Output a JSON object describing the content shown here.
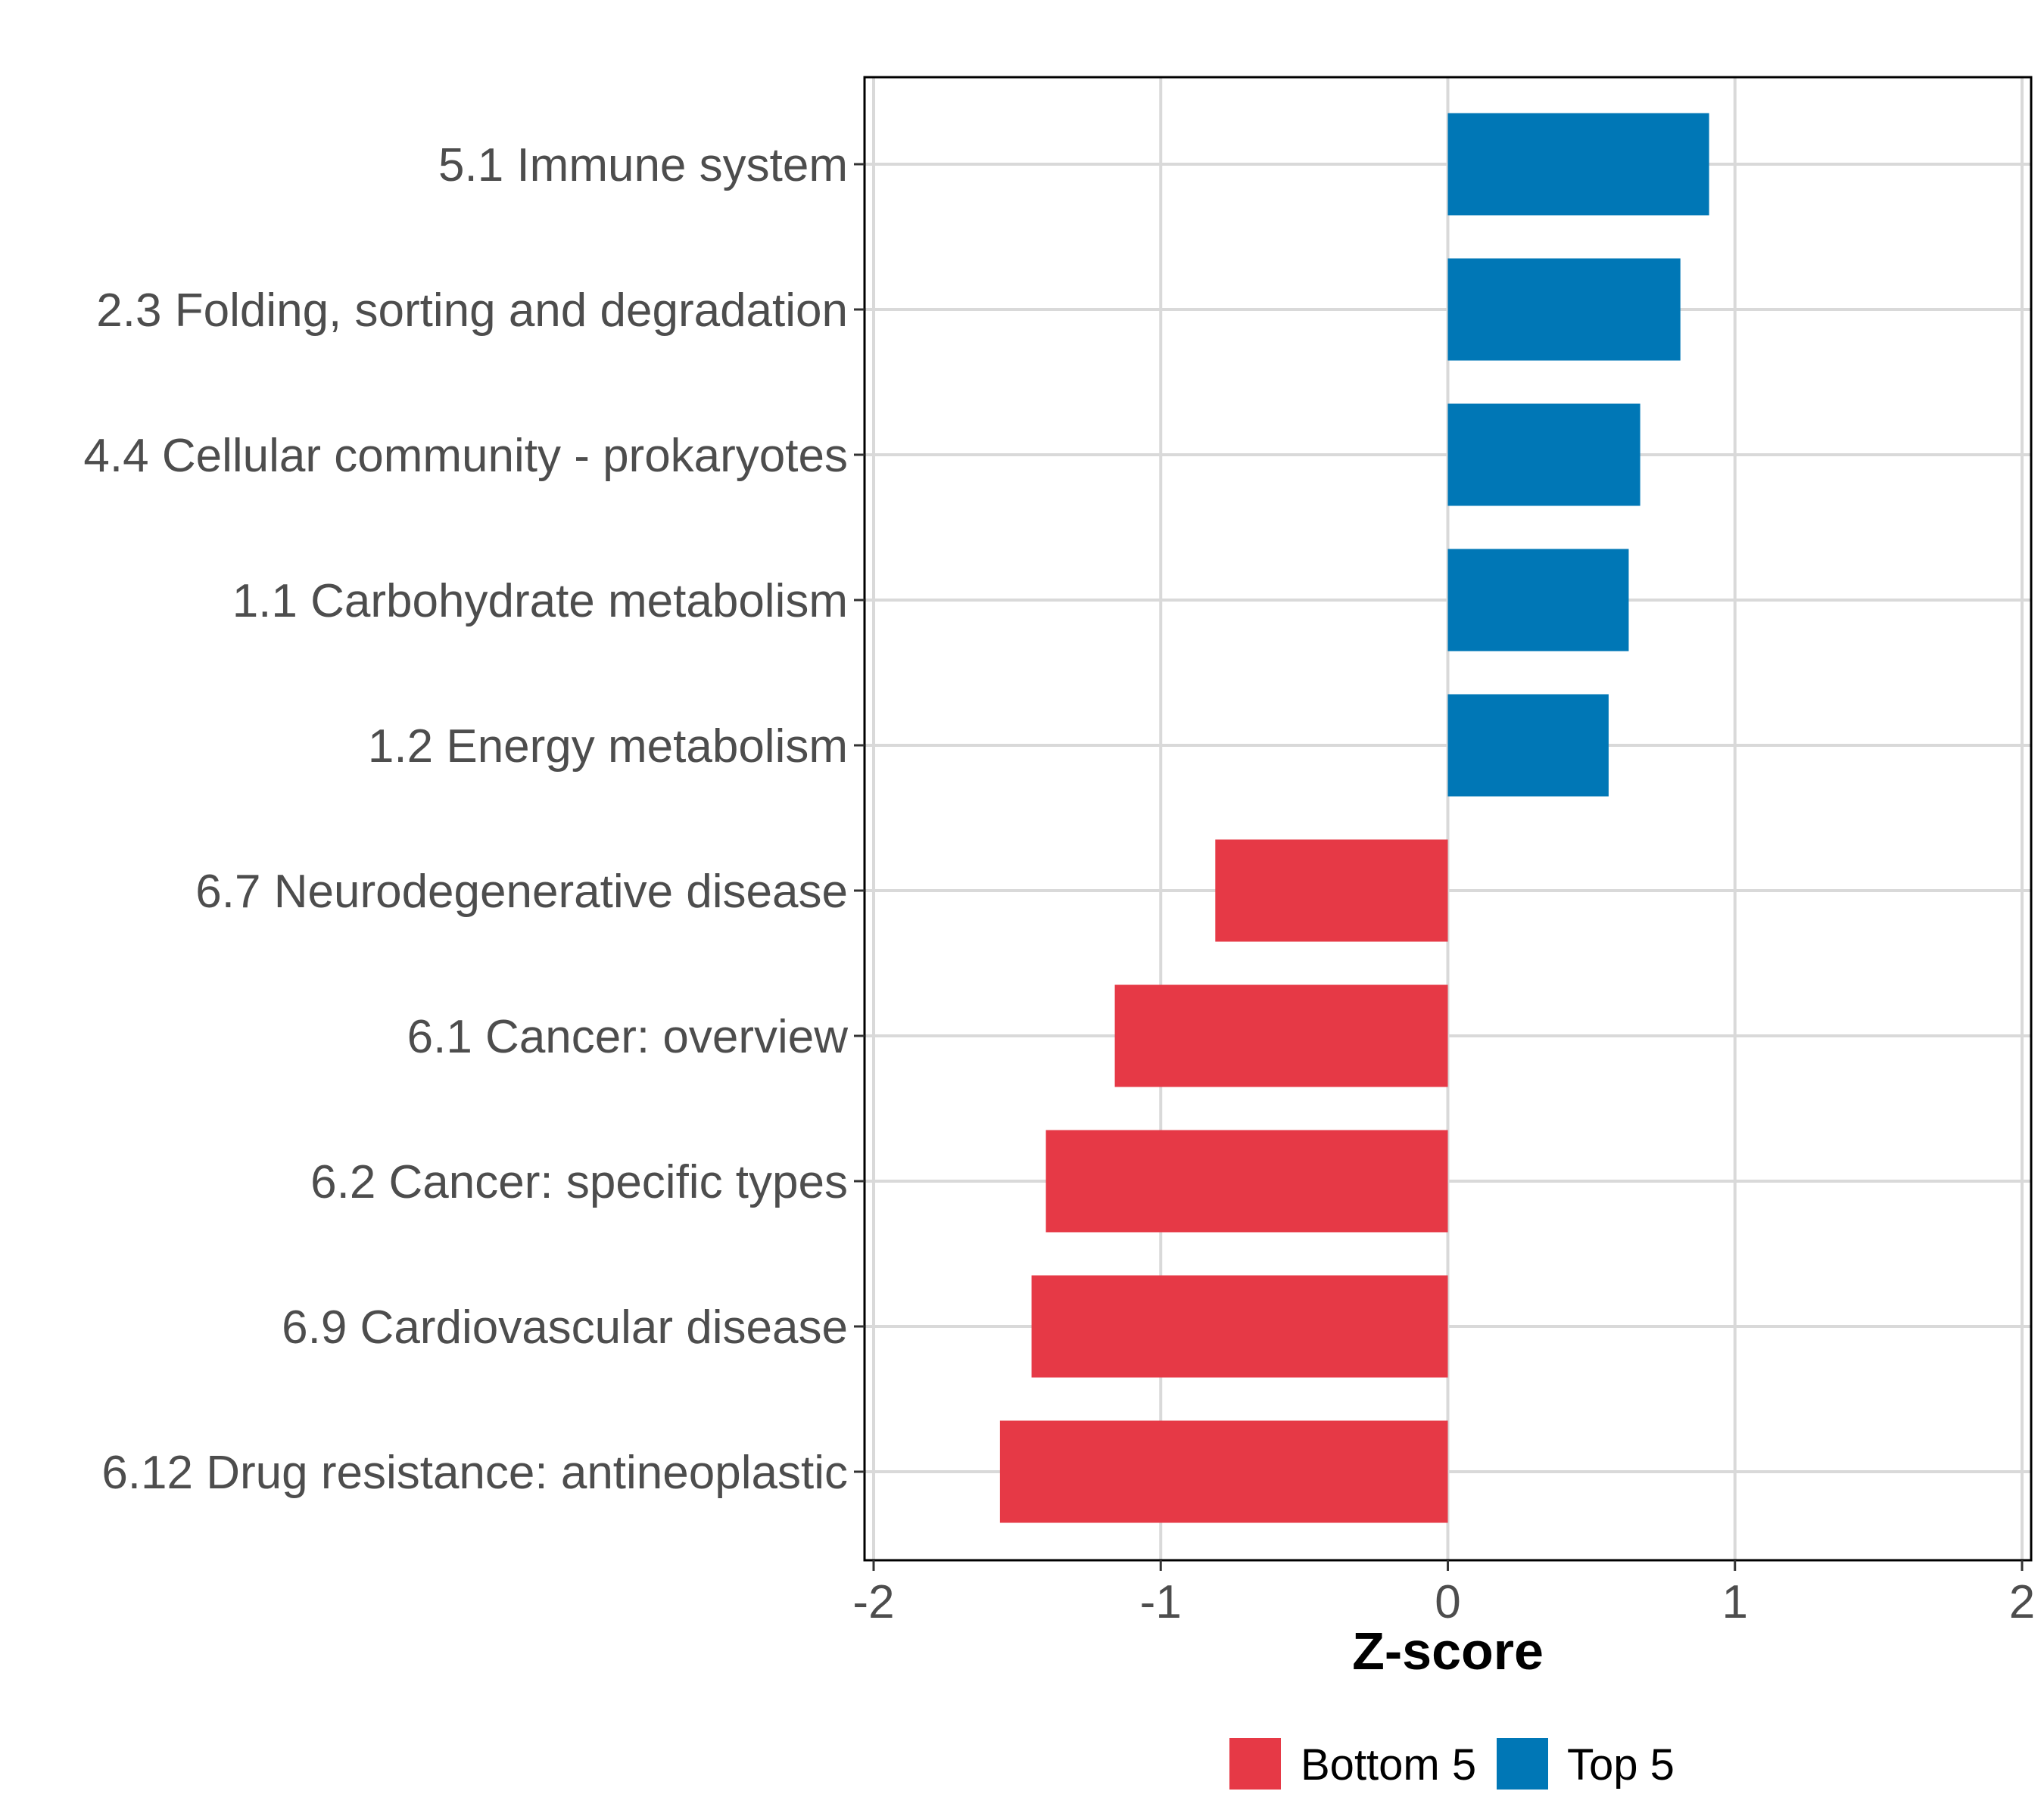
{
  "chart_data": {
    "type": "bar",
    "orientation": "horizontal",
    "categories": [
      "5.1 Immune system",
      "2.3 Folding, sorting and degradation",
      "4.4 Cellular community - prokaryotes",
      "1.1 Carbohydrate metabolism",
      "1.2 Energy metabolism",
      "6.7 Neurodegenerative disease",
      "6.1 Cancer: overview",
      "6.2 Cancer: specific types",
      "6.9 Cardiovascular disease",
      "6.12 Drug resistance: antineoplastic"
    ],
    "values": [
      0.91,
      0.81,
      0.67,
      0.63,
      0.56,
      -0.81,
      -1.16,
      -1.4,
      -1.45,
      -1.56
    ],
    "groups": [
      "Top 5",
      "Top 5",
      "Top 5",
      "Top 5",
      "Top 5",
      "Bottom 5",
      "Bottom 5",
      "Bottom 5",
      "Bottom 5",
      "Bottom 5"
    ],
    "xlabel": "Z-score",
    "ylabel": "",
    "xlim": [
      -2,
      2
    ],
    "xticks": [
      -2,
      -1,
      0,
      1,
      2
    ],
    "xtick_labels": [
      "-2",
      "-1",
      "0",
      "1",
      "2"
    ],
    "grid": true,
    "legend": {
      "position": "bottom",
      "entries": [
        {
          "label": "Bottom 5",
          "color": "#E63946"
        },
        {
          "label": "Top 5",
          "color": "#0077B6"
        }
      ]
    }
  }
}
